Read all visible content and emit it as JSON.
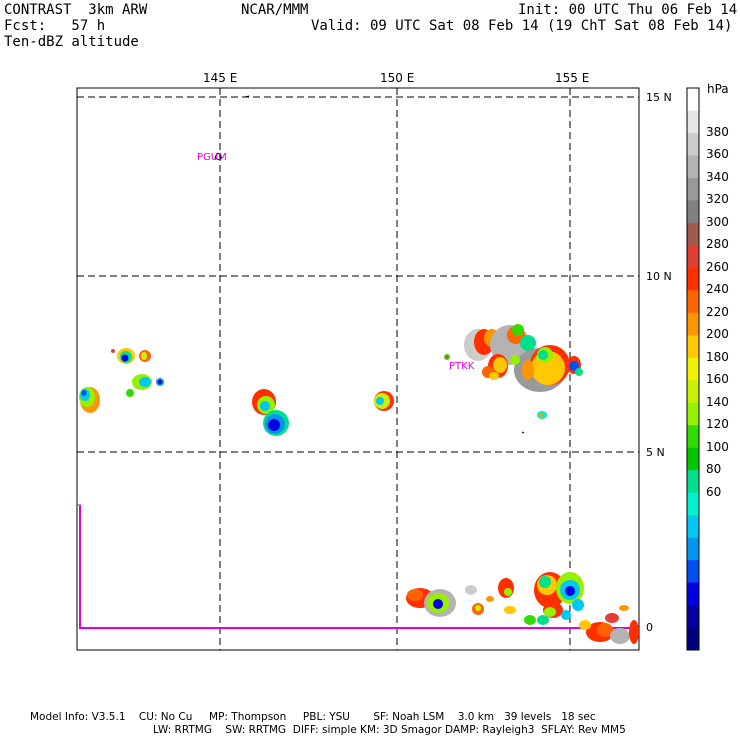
{
  "header": {
    "left_line1": "CONTRAST  3km ARW",
    "left_line2": "Fcst:   57 h",
    "left_line3": "Ten-dBZ altitude",
    "center": "NCAR/MMM",
    "init": "Init: 00 UTC Thu 06 Feb 14",
    "valid": "Valid: 09 UTC Sat 08 Feb 14 (19 ChT Sat 08 Feb 14)"
  },
  "map": {
    "lon_labels": [
      "145 E",
      "150 E",
      "155 E"
    ],
    "lat_labels": [
      "15 N",
      "10 N",
      "5 N",
      "0"
    ],
    "stations": [
      "PGUM",
      "PTKK"
    ]
  },
  "colorbar": {
    "unit": "hPa",
    "labels": [
      "380",
      "360",
      "340",
      "320",
      "300",
      "280",
      "260",
      "240",
      "220",
      "200",
      "180",
      "160",
      "140",
      "120",
      "100",
      "80",
      "60"
    ],
    "colors": [
      "#ffffff",
      "#e6e6e6",
      "#cccccc",
      "#b3b3b3",
      "#999999",
      "#808080",
      "#a05a50",
      "#e04030",
      "#ff3000",
      "#ff6400",
      "#ff9600",
      "#ffc800",
      "#f0f000",
      "#c8f000",
      "#96f000",
      "#32dc00",
      "#00c800",
      "#00e08c",
      "#00f0d0",
      "#00c8f0",
      "#0096f0",
      "#0050f0",
      "#0000e0",
      "#0000a0",
      "#000080"
    ]
  },
  "footer": {
    "line1": "Model Info: V3.5.1    CU: No Cu     MP: Thompson     PBL: YSU       SF: Noah LSM    3.0 km   39 levels   18 sec",
    "line2": "LW: RRTMG    SW: RRTMG  DIFF: simple KM: 3D Smagor DAMP: Rayleigh3  SFLAY: Rev MM5"
  }
}
